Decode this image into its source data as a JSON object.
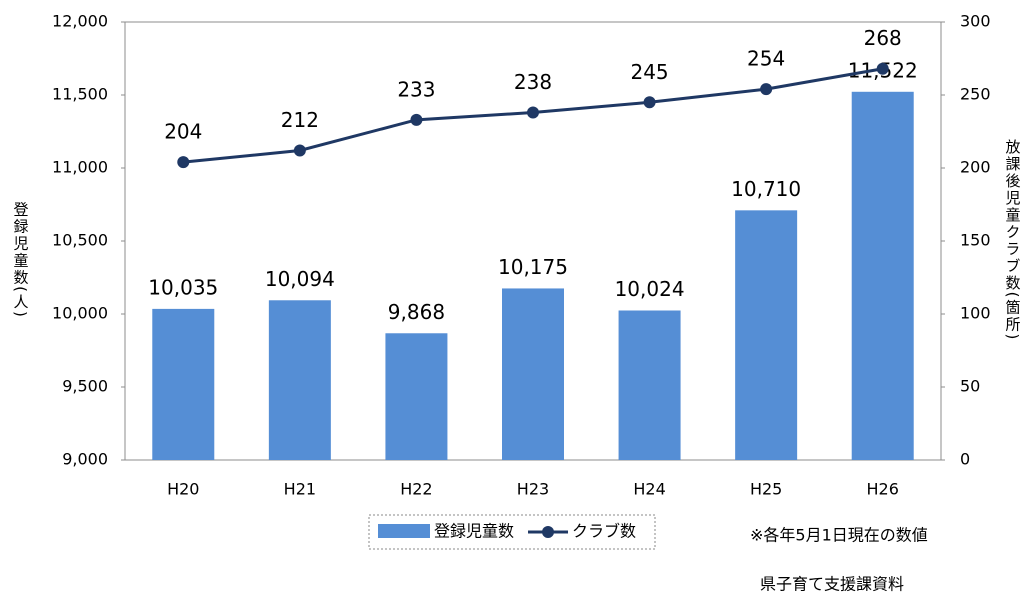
{
  "chart_data": {
    "type": "combo",
    "categories": [
      "H20",
      "H21",
      "H22",
      "H23",
      "H24",
      "H25",
      "H26"
    ],
    "series": [
      {
        "name": "登録児童数",
        "type": "bar",
        "color": "#558ed5",
        "values": [
          10035,
          10094,
          9868,
          10175,
          10024,
          10710,
          11522
        ],
        "value_labels": [
          "10,035",
          "10,094",
          "9,868",
          "10,175",
          "10,024",
          "10,710",
          "11,522"
        ]
      },
      {
        "name": "クラブ数",
        "type": "line",
        "axis": "y2",
        "color": "#1f3864",
        "values": [
          204,
          212,
          233,
          238,
          245,
          254,
          268
        ]
      }
    ],
    "ylim": [
      9000,
      12000
    ],
    "yticks": [
      {
        "value": 9000,
        "label": "9,000"
      },
      {
        "value": 9500,
        "label": "9,500"
      },
      {
        "value": 10000,
        "label": "10,000"
      },
      {
        "value": 10500,
        "label": "10,500"
      },
      {
        "value": 11000,
        "label": "11,000"
      },
      {
        "value": 11500,
        "label": "11,500"
      },
      {
        "value": 12000,
        "label": "12,000"
      }
    ],
    "y2lim": [
      0,
      300
    ],
    "y2ticks": [
      0,
      50,
      100,
      150,
      200,
      250,
      300
    ],
    "y_label": "登録児童数(人)",
    "y2_label": "放課後児童クラブ数(箇所)",
    "grid": false,
    "annotations": [
      "※各年5月1日現在の数値",
      "県子育て支援課資料"
    ]
  }
}
